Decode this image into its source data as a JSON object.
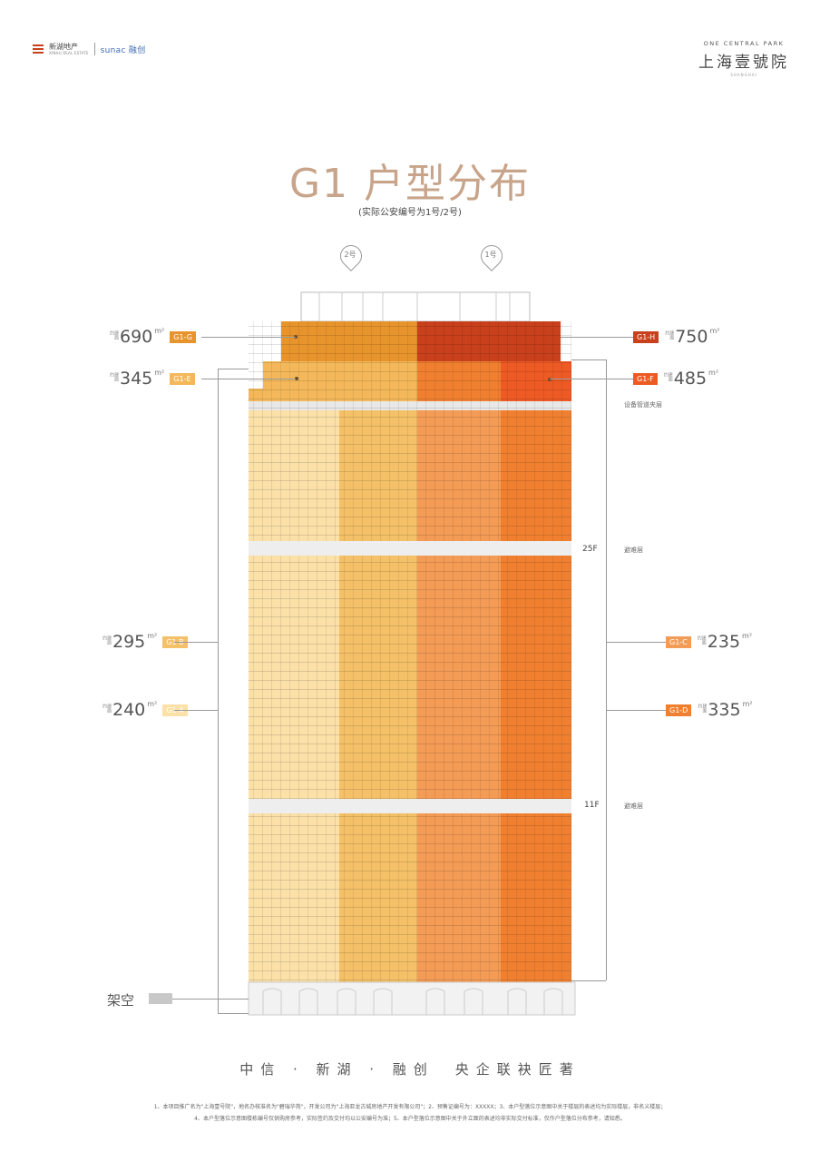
{
  "header": {
    "logo_left_cn": "新湖地产",
    "logo_left_en": "XINHU REAL ESTATE",
    "logo_sunac": "sunac 融创",
    "logo_right_en": "ONE CENTRAL PARK",
    "logo_right_cn": "上海壹號院",
    "logo_right_city": "SHANGHAI"
  },
  "title": "G1 户型分布",
  "subtitle": "(实际公安编号为1号/2号)",
  "pins": [
    {
      "label": "2号"
    },
    {
      "label": "1号"
    }
  ],
  "area_prefix": "建面约",
  "units": [
    {
      "tag": "G1-G",
      "area": "690",
      "unit": "m²",
      "color": "#e8942c"
    },
    {
      "tag": "G1-E",
      "area": "345",
      "unit": "m²",
      "color": "#f4b85a"
    },
    {
      "tag": "G1-B",
      "area": "295",
      "unit": "m²",
      "color": "#f4c068"
    },
    {
      "tag": "G1-A",
      "area": "240",
      "unit": "m²",
      "color": "#fbe0a8"
    },
    {
      "tag": "G1-H",
      "area": "750",
      "unit": "m²",
      "color": "#c8401c"
    },
    {
      "tag": "G1-F",
      "area": "485",
      "unit": "m²",
      "color": "#ee5a24"
    },
    {
      "tag": "G1-C",
      "area": "235",
      "unit": "m²",
      "color": "#f49b56"
    },
    {
      "tag": "G1-D",
      "area": "335",
      "unit": "m²",
      "color": "#f08030"
    }
  ],
  "side_notes": {
    "equipment": "设备管道夹层",
    "refuge_25_floor": "25F",
    "refuge_25_label": "避难层",
    "refuge_11_floor": "11F",
    "refuge_11_label": "避难层",
    "stilts": "架空"
  },
  "slogan": "中信 · 新湖 · 融创　央企联袂匠著",
  "notes": [
    "1、本项目推广名为\"上海壹号院\"，地名办核准名为\"碧瑞华苑\"，开发公司为\"上海亚龙古城房地产开发有限公司\"；2、预售证编号为：XXXXX；3、本户型落位示意图中关于楼层的表述均为实际楼层，非名义楼层；",
    "4、本户型落位示意图楼栋编号仅供购房参考，实际签约及交付均以公安编号为准；5、本户型落位示意图中关于外立面的表述均非实际交付标准，仅作户型落位分布参考，请知悉。"
  ]
}
